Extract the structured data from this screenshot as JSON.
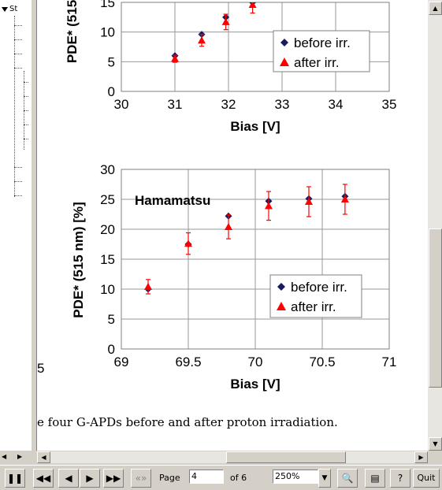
{
  "sidebar": {
    "tree_label": "St"
  },
  "chart_data": [
    {
      "type": "scatter",
      "title": "",
      "xlabel": "Bias [V]",
      "ylabel": "PDE* (515",
      "xlim": [
        30,
        35
      ],
      "ylim": [
        0,
        15
      ],
      "x_ticks": [
        "30",
        "31",
        "32",
        "33",
        "34",
        "35"
      ],
      "y_ticks": [
        "0",
        "5",
        "10",
        "15"
      ],
      "legend": "right",
      "series": [
        {
          "name": "before irr.",
          "marker": "diamond",
          "color": "#1a1a5e",
          "x": [
            31.0,
            31.5,
            31.95,
            32.45
          ],
          "y": [
            6.0,
            9.6,
            12.5,
            15.0
          ]
        },
        {
          "name": "after irr.",
          "marker": "triangle",
          "color": "#ff0000",
          "x": [
            31.0,
            31.5,
            31.95,
            32.45
          ],
          "y": [
            5.5,
            8.6,
            11.7,
            14.6
          ],
          "err": [
            0.6,
            1.0,
            1.3,
            1.4
          ]
        }
      ]
    },
    {
      "type": "scatter",
      "title": "Hamamatsu",
      "xlabel": "Bias [V]",
      "ylabel": "PDE* (515 nm) [%]",
      "xlim": [
        69,
        71
      ],
      "ylim": [
        0,
        30
      ],
      "x_ticks": [
        "69",
        "69.5",
        "70",
        "70.5",
        "71"
      ],
      "y_ticks": [
        "0",
        "5",
        "10",
        "15",
        "20",
        "25",
        "30"
      ],
      "legend": "bottom-right",
      "series": [
        {
          "name": "before irr.",
          "marker": "diamond",
          "color": "#1a1a5e",
          "x": [
            69.2,
            69.5,
            69.8,
            70.1,
            70.4,
            70.67
          ],
          "y": [
            10.0,
            17.5,
            22.2,
            24.7,
            25.1,
            25.5
          ]
        },
        {
          "name": "after irr.",
          "marker": "triangle",
          "color": "#ff0000",
          "x": [
            69.2,
            69.5,
            69.8,
            70.1,
            70.4,
            70.67
          ],
          "y": [
            10.4,
            17.6,
            20.4,
            23.9,
            24.6,
            25.0
          ],
          "err": [
            1.2,
            1.8,
            2.0,
            2.4,
            2.5,
            2.5
          ]
        }
      ]
    }
  ],
  "page": {
    "left_edge_tick": "5",
    "caption": "e four G-APDs before and after proton irradiation."
  },
  "toolbar": {
    "page_label": "Page",
    "page_value": "4",
    "of_label": "of 6",
    "zoom_value": "250%",
    "quit_label": "Quit"
  }
}
